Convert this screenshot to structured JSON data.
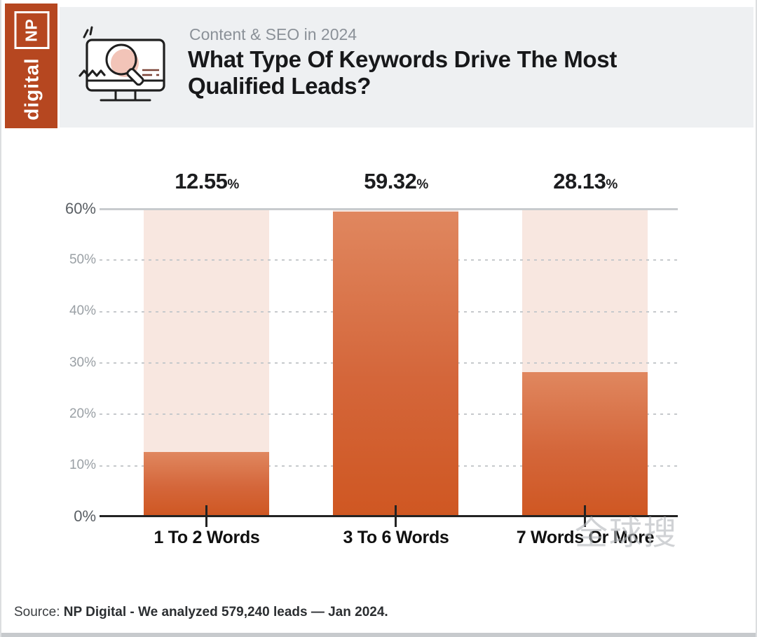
{
  "logo": {
    "np": "NP",
    "brand": "digital"
  },
  "header": {
    "eyebrow": "Content & SEO in 2024",
    "title_line1": "What Type Of Keywords Drive The Most",
    "title_line2": "Qualified Leads?"
  },
  "chart_data": {
    "type": "bar",
    "title": "What Type Of Keywords Drive The Most Qualified Leads?",
    "subtitle": "Content & SEO in 2024",
    "categories": [
      "1 To 2 Words",
      "3 To 6 Words",
      "7 Words Or More"
    ],
    "values": [
      12.55,
      59.32,
      28.13
    ],
    "value_labels": [
      "12.55",
      "59.32",
      "28.13"
    ],
    "unit": "%",
    "ylim": [
      0,
      60
    ],
    "yticks": [
      "60%",
      "50%",
      "40%",
      "30%",
      "20%",
      "10%",
      "0%"
    ],
    "grid": "horizontal dashed, solid line at 60%, dark baseline at 0%",
    "legend": "none",
    "colors": {
      "bar_fill_top": "#e0875f",
      "bar_fill_bottom": "#cf5722",
      "bar_track": "#f8e7e0",
      "gridline": "#c8cbce",
      "axis": "#232323",
      "accent_brand": "#b64720"
    }
  },
  "icons": {
    "hero": "monitor-magnifier-icon"
  },
  "watermark": "全球搜",
  "source": {
    "prefix": "Source:",
    "text": "NP Digital - We analyzed 579,240 leads — Jan 2024."
  }
}
